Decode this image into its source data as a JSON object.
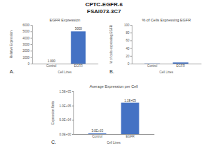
{
  "header": {
    "title": "CPTC-EGFR-6",
    "subtitle": "FSAI073-3C7"
  },
  "chart_data": [
    {
      "type": "bar",
      "title": "EGFR Expression",
      "annotation": "A.",
      "x_label": "Cell Lines",
      "y_label": "Relative Expression",
      "categories": [
        "Control",
        "EGFR"
      ],
      "values": [
        1,
        5000
      ],
      "value_labels": [
        "1.000",
        "5000"
      ],
      "color": "#4472c4",
      "ylim": [
        0,
        6000
      ],
      "yticks": [
        0,
        1000,
        2000,
        3000,
        4000,
        5000,
        6000
      ],
      "grid": false,
      "data_labels": true
    },
    {
      "type": "bar",
      "title": "% of Cells Expressing EGFR",
      "annotation": "B.",
      "x_label": "Cell Lines",
      "y_label": "% of cells expressing EGFR",
      "categories": [
        "Control",
        "EGFR"
      ],
      "values": [
        0.5,
        3
      ],
      "color": "#4472c4",
      "ylim": [
        0,
        100
      ],
      "yticks": [
        0,
        20,
        40,
        60,
        80,
        100
      ],
      "grid": false,
      "data_labels": false
    },
    {
      "type": "bar",
      "title": "Average Expression per Cell",
      "annotation": "C.",
      "x_label": "Cell Lines",
      "y_label": "Expression Units",
      "categories": [
        "Control",
        "EGFR"
      ],
      "values": [
        3000,
        110000
      ],
      "value_labels": [
        "3.0E+03",
        "1.1E+05"
      ],
      "color": "#4472c4",
      "ylim": [
        0,
        150000
      ],
      "yticks": [
        {
          "value": 0,
          "label": "0.0E+00"
        },
        {
          "value": 50000,
          "label": "5.0E+04"
        },
        {
          "value": 100000,
          "label": "1.0E+05"
        },
        {
          "value": 150000,
          "label": "1.5E+05"
        }
      ],
      "grid": false,
      "data_labels": true
    }
  ]
}
